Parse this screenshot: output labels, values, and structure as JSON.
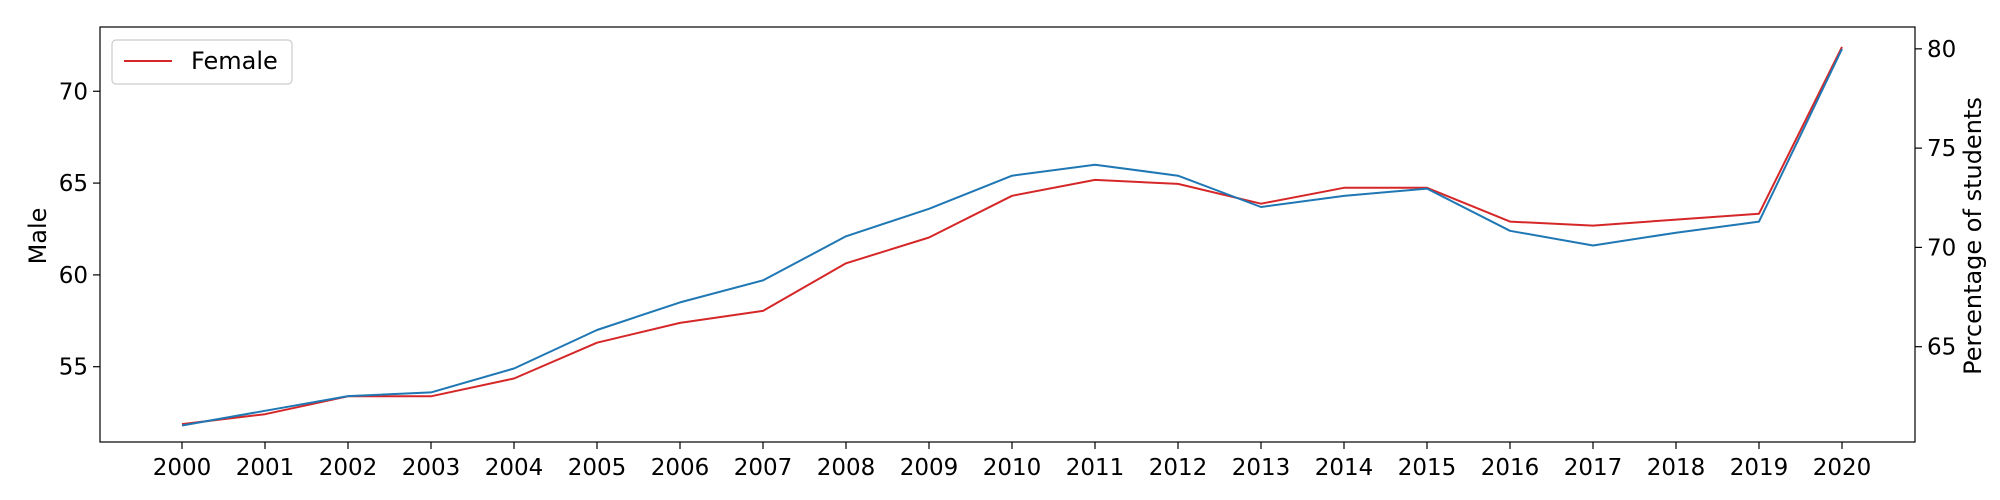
{
  "chart_data": {
    "type": "line",
    "x": [
      2000,
      2001,
      2002,
      2003,
      2004,
      2005,
      2006,
      2007,
      2008,
      2009,
      2010,
      2011,
      2012,
      2013,
      2014,
      2015,
      2016,
      2017,
      2018,
      2019,
      2020
    ],
    "x_tick_labels": [
      "2000",
      "2001",
      "2002",
      "2003",
      "2004",
      "2005",
      "2006",
      "2007",
      "2008",
      "2009",
      "2010",
      "2011",
      "2012",
      "2013",
      "2014",
      "2015",
      "2016",
      "2017",
      "2018",
      "2019",
      "2020"
    ],
    "left_axis": {
      "label": "Male",
      "ylim": [
        50.9,
        73.5
      ],
      "ticks": [
        55,
        60,
        65,
        70
      ]
    },
    "right_axis": {
      "label": "Percentage of students",
      "ylim": [
        60.2,
        81.1
      ],
      "ticks": [
        65,
        70,
        75,
        80
      ]
    },
    "series": [
      {
        "name": "Female",
        "axis": "right",
        "color": "#d62728",
        "values": [
          61.1,
          61.6,
          62.5,
          62.5,
          63.4,
          65.2,
          66.2,
          66.8,
          69.2,
          70.5,
          72.6,
          73.4,
          73.2,
          72.2,
          73.0,
          73.0,
          71.3,
          71.1,
          71.4,
          71.7,
          80.1
        ]
      },
      {
        "name": "",
        "axis": "left",
        "color": "#1f77b4",
        "values": [
          51.8,
          52.6,
          53.4,
          53.6,
          54.9,
          57.0,
          58.5,
          59.7,
          62.1,
          63.6,
          65.4,
          66.0,
          65.4,
          63.7,
          64.3,
          64.7,
          62.4,
          61.6,
          62.3,
          62.9,
          72.3
        ]
      }
    ],
    "legend": {
      "position": "top-left",
      "entries": [
        "Female"
      ]
    },
    "grid": false
  }
}
